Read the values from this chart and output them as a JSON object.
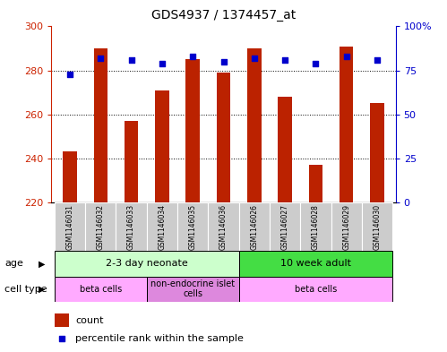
{
  "title": "GDS4937 / 1374457_at",
  "samples": [
    "GSM1146031",
    "GSM1146032",
    "GSM1146033",
    "GSM1146034",
    "GSM1146035",
    "GSM1146036",
    "GSM1146026",
    "GSM1146027",
    "GSM1146028",
    "GSM1146029",
    "GSM1146030"
  ],
  "counts": [
    243,
    290,
    257,
    271,
    285,
    279,
    290,
    268,
    237,
    291,
    265
  ],
  "percentiles": [
    73,
    82,
    81,
    79,
    83,
    80,
    82,
    81,
    79,
    83,
    81
  ],
  "ylim_left": [
    220,
    300
  ],
  "ylim_right": [
    0,
    100
  ],
  "yticks_left": [
    220,
    240,
    260,
    280,
    300
  ],
  "yticks_right": [
    0,
    25,
    50,
    75,
    100
  ],
  "ytick_labels_right": [
    "0",
    "25",
    "50",
    "75",
    "100%"
  ],
  "bar_color": "#bb2200",
  "dot_color": "#0000cc",
  "gridline_color": "#000000",
  "age_groups": [
    {
      "label": "2-3 day neonate",
      "start": 0,
      "end": 6,
      "color": "#ccffcc"
    },
    {
      "label": "10 week adult",
      "start": 6,
      "end": 11,
      "color": "#44dd44"
    }
  ],
  "cell_type_groups": [
    {
      "label": "beta cells",
      "start": 0,
      "end": 3,
      "color": "#ffaaff"
    },
    {
      "label": "non-endocrine islet\ncells",
      "start": 3,
      "end": 6,
      "color": "#dd88dd"
    },
    {
      "label": "beta cells",
      "start": 6,
      "end": 11,
      "color": "#ffaaff"
    }
  ],
  "legend_items": [
    {
      "color": "#bb2200",
      "label": "count"
    },
    {
      "color": "#0000cc",
      "label": "percentile rank within the sample"
    }
  ],
  "tick_bg_color": "#cccccc",
  "plot_bg_color": "#ffffff",
  "axis_left_color": "#cc2200",
  "axis_right_color": "#0000cc"
}
